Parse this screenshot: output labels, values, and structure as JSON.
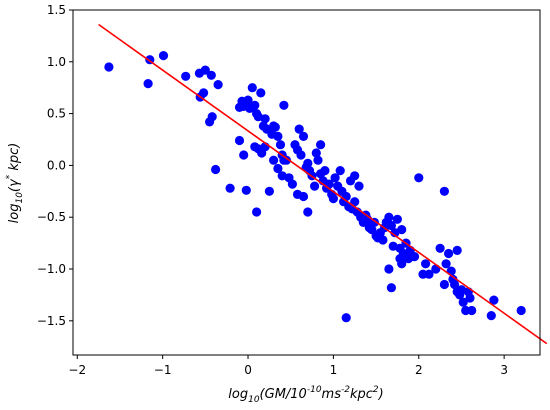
{
  "chart_data": {
    "type": "scatter",
    "xlabel_main": "log",
    "xlabel_sub": "10",
    "xlabel_rest": "(GM/10",
    "xlabel_sup1": "-10",
    "xlabel_rest2": "ms",
    "xlabel_sup2": "-2",
    "xlabel_rest3": "kpc",
    "xlabel_sup3": "2",
    "xlabel_rest4": ")",
    "ylabel_main": "log",
    "ylabel_sub": "10",
    "ylabel_rest": "(γ",
    "ylabel_sup": "*",
    "ylabel_rest2": " kpc)",
    "xlim": [
      -2.05,
      3.42
    ],
    "ylim": [
      -1.83,
      1.5
    ],
    "xticks": [
      "−2",
      "−1",
      "0",
      "1",
      "2",
      "3"
    ],
    "xtick_values": [
      -2,
      -1,
      0,
      1,
      2,
      3
    ],
    "yticks": [
      "−1.5",
      "−1.0",
      "−0.5",
      "0.0",
      "0.5",
      "1.0",
      "1.5"
    ],
    "ytick_values": [
      -1.5,
      -1.0,
      -0.5,
      0.0,
      0.5,
      1.0,
      1.5
    ],
    "grid": false,
    "point_color": "#0000ff",
    "line_color": "#ff0000",
    "fit_line": {
      "x": [
        -1.75,
        3.5
      ],
      "y": [
        1.36,
        -1.72
      ]
    },
    "points": [
      [
        -1.63,
        0.95
      ],
      [
        -1.17,
        0.79
      ],
      [
        -1.15,
        1.02
      ],
      [
        -0.99,
        1.06
      ],
      [
        -0.73,
        0.86
      ],
      [
        -0.57,
        0.89
      ],
      [
        -0.5,
        0.92
      ],
      [
        -0.52,
        0.7
      ],
      [
        -0.56,
        0.66
      ],
      [
        -0.43,
        0.87
      ],
      [
        -0.35,
        0.78
      ],
      [
        -0.42,
        0.47
      ],
      [
        -0.45,
        0.42
      ],
      [
        -0.38,
        -0.04
      ],
      [
        -0.21,
        -0.22
      ],
      [
        -0.1,
        0.56
      ],
      [
        -0.07,
        0.62
      ],
      [
        -0.05,
        0.57
      ],
      [
        -0.02,
        0.6
      ],
      [
        0.0,
        0.63
      ],
      [
        0.02,
        0.55
      ],
      [
        0.05,
        0.75
      ],
      [
        0.08,
        0.58
      ],
      [
        0.1,
        0.5
      ],
      [
        0.12,
        0.47
      ],
      [
        0.15,
        0.7
      ],
      [
        0.18,
        0.38
      ],
      [
        0.2,
        0.45
      ],
      [
        0.22,
        0.35
      ],
      [
        0.28,
        0.3
      ],
      [
        0.32,
        0.37
      ],
      [
        0.35,
        0.28
      ],
      [
        0.38,
        0.2
      ],
      [
        0.4,
        0.1
      ],
      [
        0.42,
        0.05
      ],
      [
        -0.1,
        0.24
      ],
      [
        -0.05,
        0.1
      ],
      [
        -0.02,
        -0.24
      ],
      [
        0.08,
        0.18
      ],
      [
        0.12,
        0.16
      ],
      [
        0.16,
        0.12
      ],
      [
        0.2,
        0.18
      ],
      [
        0.1,
        -0.45
      ],
      [
        0.25,
        -0.25
      ],
      [
        0.3,
        0.05
      ],
      [
        0.35,
        -0.03
      ],
      [
        0.4,
        -0.1
      ],
      [
        0.45,
        0.05
      ],
      [
        0.48,
        -0.12
      ],
      [
        0.52,
        -0.18
      ],
      [
        0.55,
        0.2
      ],
      [
        0.58,
        0.15
      ],
      [
        0.6,
        0.35
      ],
      [
        0.62,
        0.1
      ],
      [
        0.65,
        0.28
      ],
      [
        0.68,
        -0.02
      ],
      [
        0.7,
        0.02
      ],
      [
        0.72,
        -0.05
      ],
      [
        0.75,
        -0.1
      ],
      [
        0.78,
        -0.2
      ],
      [
        0.8,
        0.12
      ],
      [
        0.82,
        0.05
      ],
      [
        0.85,
        -0.08
      ],
      [
        0.88,
        -0.15
      ],
      [
        0.9,
        -0.05
      ],
      [
        0.92,
        -0.22
      ],
      [
        0.95,
        -0.18
      ],
      [
        0.98,
        -0.28
      ],
      [
        1.0,
        -0.32
      ],
      [
        1.02,
        -0.12
      ],
      [
        1.05,
        -0.2
      ],
      [
        1.08,
        -0.05
      ],
      [
        1.1,
        -0.25
      ],
      [
        1.12,
        -0.35
      ],
      [
        1.15,
        -0.3
      ],
      [
        1.18,
        -0.4
      ],
      [
        1.2,
        -0.15
      ],
      [
        1.22,
        -0.42
      ],
      [
        1.25,
        -0.35
      ],
      [
        1.28,
        -0.45
      ],
      [
        1.3,
        -0.2
      ],
      [
        1.32,
        -0.5
      ],
      [
        1.35,
        -0.55
      ],
      [
        1.38,
        -0.48
      ],
      [
        1.4,
        -0.52
      ],
      [
        1.42,
        -0.6
      ],
      [
        1.45,
        -0.62
      ],
      [
        1.48,
        -0.55
      ],
      [
        1.5,
        -0.68
      ],
      [
        1.52,
        -0.7
      ],
      [
        1.55,
        -0.65
      ],
      [
        1.58,
        -0.72
      ],
      [
        1.6,
        -0.6
      ],
      [
        1.62,
        -0.55
      ],
      [
        1.65,
        -0.5
      ],
      [
        1.68,
        -0.58
      ],
      [
        1.7,
        -0.78
      ],
      [
        1.72,
        -0.65
      ],
      [
        1.75,
        -0.52
      ],
      [
        1.78,
        -0.8
      ],
      [
        1.8,
        -0.62
      ],
      [
        1.82,
        -0.85
      ],
      [
        1.85,
        -0.75
      ],
      [
        1.88,
        -0.9
      ],
      [
        1.9,
        -0.82
      ],
      [
        1.65,
        -1.0
      ],
      [
        1.68,
        -1.18
      ],
      [
        1.78,
        -0.9
      ],
      [
        1.8,
        -0.95
      ],
      [
        1.95,
        -0.88
      ],
      [
        2.0,
        -0.12
      ],
      [
        2.05,
        -1.05
      ],
      [
        2.08,
        -0.95
      ],
      [
        2.12,
        -1.05
      ],
      [
        2.2,
        -1.0
      ],
      [
        2.25,
        -0.8
      ],
      [
        2.3,
        -0.25
      ],
      [
        2.32,
        -0.95
      ],
      [
        2.35,
        -0.85
      ],
      [
        2.38,
        -1.02
      ],
      [
        2.4,
        -1.1
      ],
      [
        2.42,
        -1.15
      ],
      [
        2.45,
        -1.22
      ],
      [
        2.48,
        -1.25
      ],
      [
        2.5,
        -1.2
      ],
      [
        2.52,
        -1.32
      ],
      [
        2.55,
        -1.4
      ],
      [
        2.58,
        -1.22
      ],
      [
        2.6,
        -1.28
      ],
      [
        2.62,
        -1.4
      ],
      [
        2.3,
        -1.15
      ],
      [
        2.45,
        -0.82
      ],
      [
        2.88,
        -1.3
      ],
      [
        2.85,
        -1.45
      ],
      [
        3.2,
        -1.4
      ],
      [
        1.15,
        -1.47
      ],
      [
        0.7,
        -0.45
      ],
      [
        0.85,
        0.2
      ],
      [
        0.58,
        -0.28
      ],
      [
        0.65,
        -0.3
      ],
      [
        1.25,
        -0.1
      ],
      [
        0.42,
        0.58
      ],
      [
        0.3,
        0.38
      ]
    ]
  }
}
